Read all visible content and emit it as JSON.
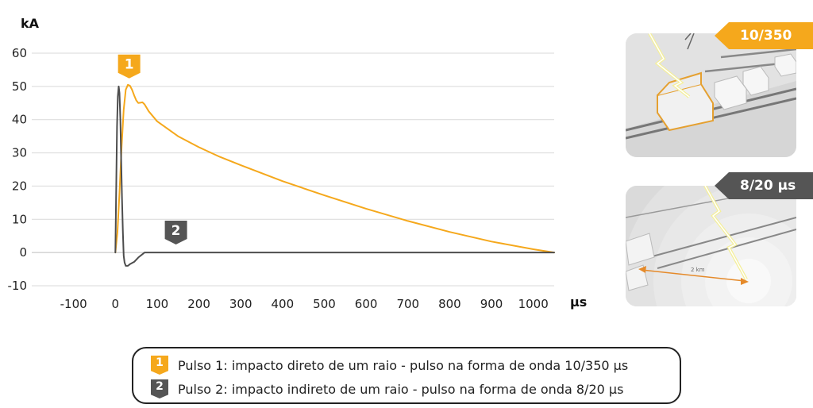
{
  "chart_data": {
    "type": "line",
    "ylabel": "kA",
    "xlabel": "µs",
    "xlim": [
      -200,
      1050
    ],
    "ylim": [
      -10,
      60
    ],
    "x_ticks": [
      -100,
      0,
      100,
      200,
      300,
      400,
      500,
      600,
      700,
      800,
      900,
      1000
    ],
    "y_ticks": [
      -10,
      0,
      10,
      20,
      30,
      40,
      50,
      60
    ],
    "grid": true,
    "series": [
      {
        "name": "1",
        "color": "#f5a81c",
        "points": [
          [
            0,
            0
          ],
          [
            5,
            6
          ],
          [
            10,
            18
          ],
          [
            15,
            32
          ],
          [
            20,
            43
          ],
          [
            25,
            49
          ],
          [
            30,
            50.5
          ],
          [
            35,
            50.2
          ],
          [
            40,
            49
          ],
          [
            45,
            47.3
          ],
          [
            50,
            45.8
          ],
          [
            55,
            45
          ],
          [
            60,
            45.1
          ],
          [
            65,
            45.2
          ],
          [
            70,
            44.6
          ],
          [
            80,
            42.5
          ],
          [
            100,
            39.5
          ],
          [
            150,
            35
          ],
          [
            200,
            31.7
          ],
          [
            250,
            28.8
          ],
          [
            300,
            26.3
          ],
          [
            400,
            21.5
          ],
          [
            500,
            17.2
          ],
          [
            600,
            13.2
          ],
          [
            700,
            9.5
          ],
          [
            800,
            6.2
          ],
          [
            900,
            3.3
          ],
          [
            1000,
            1
          ],
          [
            1050,
            0
          ]
        ]
      },
      {
        "name": "2",
        "color": "#4d4d4d",
        "points": [
          [
            0,
            0
          ],
          [
            2,
            18
          ],
          [
            4,
            38
          ],
          [
            6,
            47
          ],
          [
            8,
            50
          ],
          [
            10,
            48
          ],
          [
            12,
            40
          ],
          [
            14,
            28
          ],
          [
            16,
            16
          ],
          [
            18,
            6
          ],
          [
            20,
            -1
          ],
          [
            22,
            -3
          ],
          [
            25,
            -4
          ],
          [
            30,
            -4
          ],
          [
            35,
            -3.5
          ],
          [
            45,
            -2.8
          ],
          [
            55,
            -1.5
          ],
          [
            65,
            -0.5
          ],
          [
            70,
            0
          ],
          [
            1050,
            0
          ]
        ]
      }
    ],
    "annotations": [
      {
        "label": "1",
        "x": 33,
        "y": 56
      },
      {
        "label": "2",
        "x": 145,
        "y": 6
      }
    ]
  },
  "legend": [
    {
      "badge": "1",
      "text": "Pulso 1: impacto direto de um raio - pulso na forma de onda 10/350 µs"
    },
    {
      "badge": "2",
      "text": "Pulso 2: impacto indireto de um raio - pulso na forma de onda 8/20 µs"
    }
  ],
  "panels": [
    {
      "tag": "10/350 µs"
    },
    {
      "tag": "8/20 µs",
      "distance_label": "2 km"
    }
  ],
  "colors": {
    "pulse1": "#f5a81c",
    "pulse2": "#555555",
    "grid": "#d9d9d9"
  }
}
